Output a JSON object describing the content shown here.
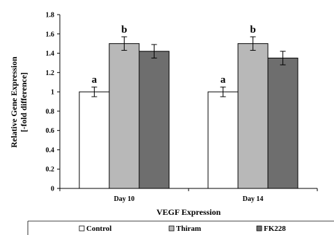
{
  "chart_data": {
    "type": "bar",
    "title": "",
    "xlabel": "VEGF Expression",
    "ylabel_lines": [
      "Relative Gene Expression",
      "[-fold difference]"
    ],
    "categories": [
      "Day 10",
      "Day 14"
    ],
    "ylim": [
      0,
      1.8
    ],
    "yticks": [
      "0",
      "0.2",
      "0.4",
      "0.6",
      "0.8",
      "1",
      "1.2",
      "1.4",
      "1.6",
      "1.8"
    ],
    "grid": false,
    "legend_position": "bottom",
    "series": [
      {
        "name": "Control",
        "values": [
          1.0,
          1.0
        ],
        "errors": [
          0.05,
          0.05
        ],
        "color": "#ffffff",
        "labels": [
          "a",
          "a"
        ]
      },
      {
        "name": "Thiram",
        "values": [
          1.5,
          1.5
        ],
        "errors": [
          0.07,
          0.07
        ],
        "color": "#b8b8b8",
        "labels": [
          "b",
          "b"
        ]
      },
      {
        "name": "FK228",
        "values": [
          1.42,
          1.35
        ],
        "errors": [
          0.07,
          0.07
        ],
        "color": "#6e6e6e",
        "labels": [
          "",
          ""
        ]
      }
    ]
  }
}
